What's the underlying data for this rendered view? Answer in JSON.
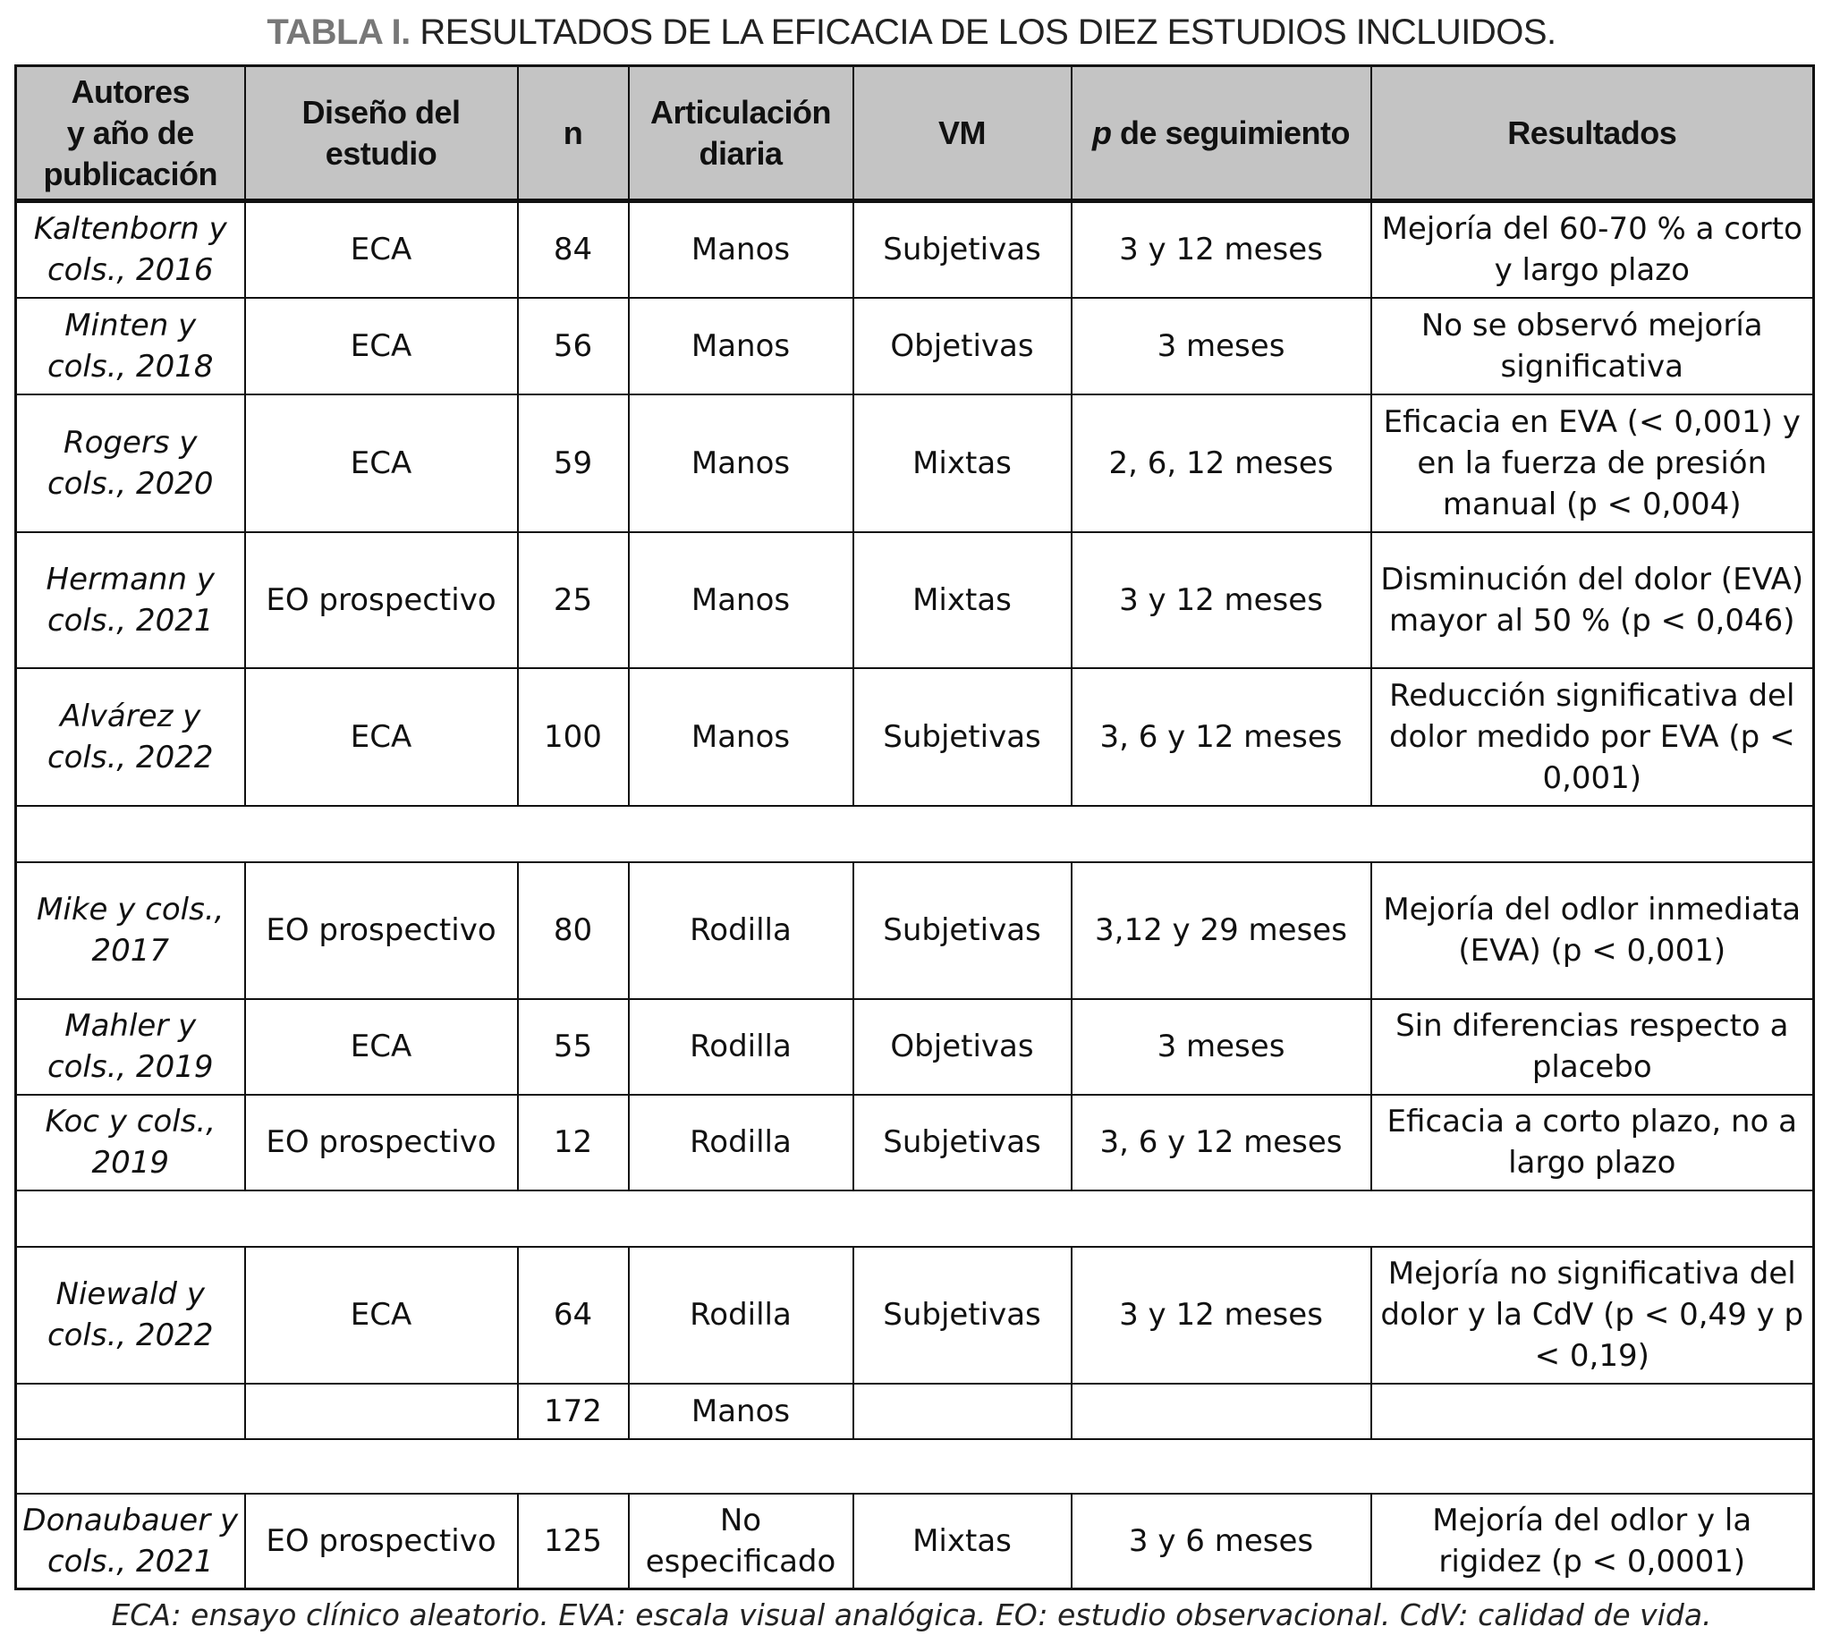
{
  "title": {
    "lead": "TABLA I.",
    "text": "RESULTADOS DE LA EFICACIA DE LOS DIEZ ESTUDIOS INCLUIDOS."
  },
  "headers": [
    "Autores\ny año de\npublicación",
    "Diseño del\nestudio",
    "n",
    "Articulación\ndiaria",
    "VM",
    "p de\nseguimiento",
    "Resultados"
  ],
  "header_p_italic": "p",
  "header_p_rest": " de seguimiento",
  "rows": [
    {
      "type": "data",
      "cells": [
        "Kaltenborn y cols., 2016",
        "ECA",
        "84",
        "Manos",
        "Subjetivas",
        "3 y 12 meses",
        "Mejoría del 60-70 % a corto y largo plazo"
      ]
    },
    {
      "type": "data",
      "cells": [
        "Minten y cols., 2018",
        "ECA",
        "56",
        "Manos",
        "Objetivas",
        "3 meses",
        "No se observó mejoría significativa"
      ]
    },
    {
      "type": "data",
      "cells": [
        "Rogers y cols., 2020",
        "ECA",
        "59",
        "Manos",
        "Mixtas",
        "2, 6, 12 meses",
        "Eficacia en EVA (< 0,001) y en la fuerza de presión manual (p < 0,004)"
      ]
    },
    {
      "type": "data",
      "cells": [
        "Hermann y cols., 2021",
        "EO prospectivo",
        "25",
        "Manos",
        "Mixtas",
        "3 y 12 meses",
        "Disminución del dolor (EVA) mayor al 50 % (p < 0,046)"
      ]
    },
    {
      "type": "data",
      "cells": [
        "Alvárez y cols., 2022",
        "ECA",
        "100",
        "Manos",
        "Subjetivas",
        "3, 6 y 12 meses",
        "Reducción significativa del dolor medido por EVA (p < 0,001)"
      ]
    },
    {
      "type": "empty"
    },
    {
      "type": "data",
      "cells": [
        "Mike y cols., 2017",
        "EO prospectivo",
        "80",
        "Rodilla",
        "Subjetivas",
        "3,12 y 29 meses",
        "Mejoría del odlor inmediata (EVA) (p < 0,001)"
      ]
    },
    {
      "type": "data",
      "cells": [
        "Mahler y cols., 2019",
        "ECA",
        "55",
        "Rodilla",
        "Objetivas",
        "3 meses",
        "Sin diferencias respecto a placebo"
      ]
    },
    {
      "type": "data",
      "cells": [
        "Koc y cols., 2019",
        "EO prospectivo",
        "12",
        "Rodilla",
        "Subjetivas",
        "3, 6 y 12 meses",
        "Eficacia a corto plazo, no a largo plazo"
      ]
    },
    {
      "type": "empty"
    },
    {
      "type": "data",
      "cells": [
        "Niewald y cols., 2022",
        "ECA",
        "64",
        "Rodilla",
        "Subjetivas",
        "3 y 12 meses",
        "Mejoría no significativa del dolor y la CdV (p < 0,49 y p < 0,19)"
      ]
    },
    {
      "type": "data",
      "cells": [
        "",
        "",
        "172",
        "Manos",
        "",
        "",
        ""
      ]
    },
    {
      "type": "empty"
    },
    {
      "type": "data",
      "cells": [
        "Donaubauer y cols., 2021",
        "EO prospectivo",
        "125",
        "No especificado",
        "Mixtas",
        "3 y 6 meses",
        "Mejoría del odlor y la rigidez (p < 0,0001)"
      ]
    }
  ],
  "caption": "ECA: ensayo clínico aleatorio. EVA: escala visual analógica. EO: estudio observacional. CdV: calidad de vida."
}
